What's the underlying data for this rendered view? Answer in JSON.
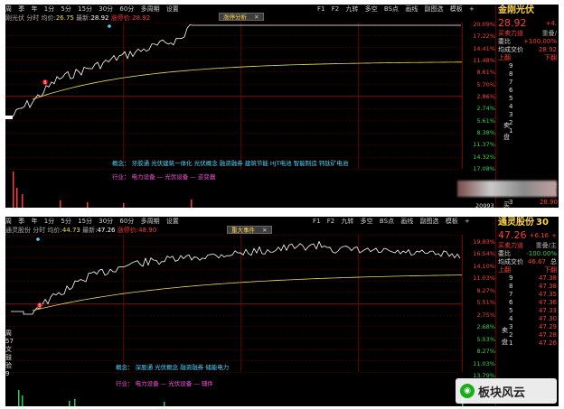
{
  "top": {
    "toolbar": [
      "周",
      "季",
      "年",
      "1分",
      "5分",
      "15分",
      "30分",
      "60分",
      "多周期",
      "设置"
    ],
    "toolbar_right": [
      "F1",
      "F2",
      "九转",
      "多空",
      "BS点",
      "画线",
      "副图选",
      "模板",
      "+"
    ],
    "stock": "刚光伏",
    "tf": "分时",
    "avg_label": "均价:",
    "avg_value": "26.75",
    "latest_label": "最新:",
    "latest_value": "28.92",
    "limit_label": "涨停价:",
    "limit_value": "28.92",
    "tag": "涨停分析",
    "tag_close": "✕",
    "axis_pct": [
      "20.09%",
      "17.22%",
      "14.41%",
      "11.48%",
      "8.61%",
      "5.70%",
      "2.86%",
      "2.74%",
      "5.61%",
      "8.38%",
      "11.37%",
      "14.32%",
      "17.08%"
    ],
    "concept": "概念： 牙胶通   光伏建筑一体化   光伏概念   融资融券   建筑节能   HJT电池   智能制造   钙钛矿电池",
    "industry": "行业： 电力设备 — 光伏设备 — 逆变器",
    "volume": "20993",
    "side_name": "金刚光伏",
    "side_price": "28.92",
    "side_change": "+4.",
    "side_label1": "买卖力道",
    "side_label2": "重叠/",
    "side_wb": "委比",
    "side_wb_val": "+100.00%",
    "side_avg": "均成交价",
    "side_avg_val": "28.92",
    "side_up": "上翻",
    "side_down": "下翻",
    "sell_rows": [
      "9",
      "8",
      "7",
      "6",
      "5",
      "4",
      "3",
      "2",
      "1"
    ],
    "side_sell": "卖",
    "side_pan": "盘",
    "side_buy": "买",
    "ask_levels": [
      "1",
      "2",
      "3"
    ],
    "buy_prices": [
      "28.92",
      "28.91",
      "28.90"
    ],
    "start_marker": "B"
  },
  "bottom": {
    "toolbar": [
      "周",
      "季",
      "年",
      "1分",
      "5分",
      "15分",
      "30分",
      "60分",
      "多周期",
      "设置"
    ],
    "toolbar_right": [
      "F1",
      "F2",
      "九转",
      "多空",
      "BS点",
      "画线",
      "副图选",
      "模板",
      "+"
    ],
    "stock": "通灵股份",
    "tf": "分时",
    "avg_label": "均价:",
    "avg_value": "44.73",
    "latest_label": "最新:",
    "latest_value": "47.26",
    "limit_label": "涨停价:",
    "limit_value": "48.90",
    "tag": "重大事件",
    "tag_close": "✕",
    "axis_pct": [
      "19.83%",
      "16.54%",
      "14.10%",
      "11.03%",
      "8.27%",
      "5.51%",
      "2.75%",
      "2.68%",
      "5.53%",
      "8.27%",
      "11.03%",
      "13.79%"
    ],
    "concept": "概念： 深股通   光伏概念   融资融券   储能电力",
    "industry": "行业： 电力设备 — 光伏设备 — 辅件",
    "side_name": "通灵股份",
    "side_name_suffix": "30",
    "side_price": "47.26",
    "side_change": "+6.16",
    "side_change_pct": "+",
    "side_label1": "买卖力道",
    "side_label2": "重叠/主",
    "side_wb": "委比",
    "side_wb_val": "-100.00%",
    "side_avg": "均成交价",
    "side_avg_val": "46.67",
    "side_avg_extra": "总",
    "side_up": "上翻",
    "side_down": "下翻",
    "sell_rows": [
      {
        "lvl": "9",
        "price": "47.38"
      },
      {
        "lvl": "8",
        "price": "47.38"
      },
      {
        "lvl": "7",
        "price": "47.35"
      },
      {
        "lvl": "6",
        "price": "47.36"
      },
      {
        "lvl": "5",
        "price": "47.33"
      },
      {
        "lvl": "4",
        "price": "47.30"
      },
      {
        "lvl": "3",
        "price": "47.29"
      },
      {
        "lvl": "2",
        "price": "47.28"
      },
      {
        "lvl": "1",
        "price": "47.26"
      }
    ],
    "side_sell": "卖",
    "side_pan": "盘",
    "left_labels": [
      "周",
      "57",
      "文",
      "鼓",
      "验",
      "9"
    ],
    "start_marker": "B"
  },
  "watermark": {
    "text": "板块风云",
    "icon": "wechat-icon",
    "icon_glyph": "◉"
  },
  "colors": {
    "price_line": "#ffffff",
    "avg_line": "#e8e04a",
    "up": "#ff3b3b",
    "down": "#2fd14a"
  }
}
